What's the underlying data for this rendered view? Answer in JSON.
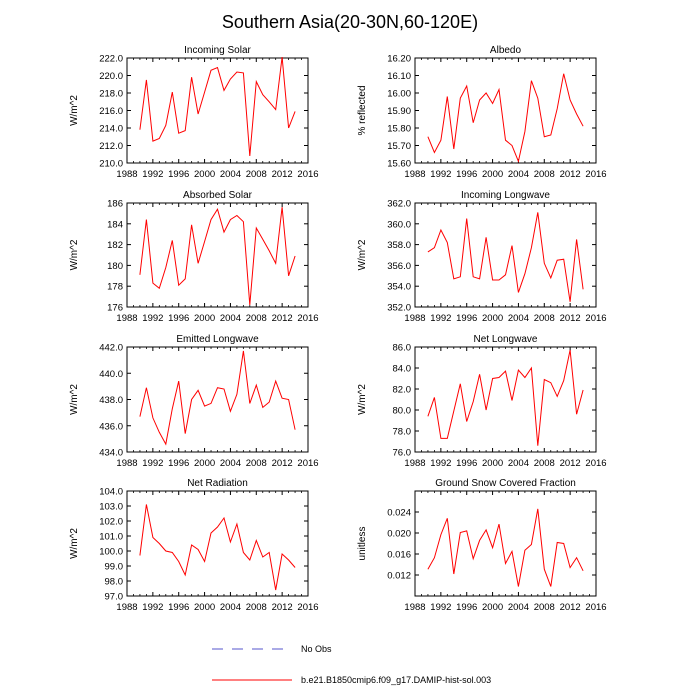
{
  "figure": {
    "title": "Southern Asia(20-30N,60-120E)",
    "legend": [
      {
        "label": "No Obs",
        "color": "#5555cc",
        "style": "dashed"
      },
      {
        "label": "b.e21.B1850cmip6.f09_g17.DAMIP-hist-sol.003",
        "color": "#ff0000",
        "style": "solid"
      }
    ]
  },
  "chart_data": [
    {
      "type": "line",
      "title": "Incoming Solar",
      "ylabel": "W/m^2",
      "xlim": [
        1988,
        2016
      ],
      "xticks": [
        1988,
        1992,
        1996,
        2000,
        2004,
        2008,
        2012,
        2016
      ],
      "ylim": [
        210,
        222
      ],
      "yticks": [
        "210.0",
        "212.0",
        "214.0",
        "216.0",
        "218.0",
        "220.0",
        "222.0"
      ],
      "series": [
        {
          "color": "#ff0000",
          "x": [
            1990,
            1991,
            1992,
            1993,
            1994,
            1995,
            1996,
            1997,
            1998,
            1999,
            2000,
            2001,
            2002,
            2003,
            2004,
            2005,
            2006,
            2007,
            2008,
            2009,
            2010,
            2011,
            2012,
            2013,
            2014
          ],
          "y": [
            213.8,
            219.5,
            212.5,
            212.8,
            214.3,
            218.1,
            213.4,
            213.7,
            219.8,
            215.6,
            218.1,
            220.6,
            220.9,
            218.3,
            219.6,
            220.4,
            220.3,
            210.8,
            219.3,
            217.8,
            217.0,
            216.1,
            222.1,
            214.0,
            215.9
          ]
        }
      ]
    },
    {
      "type": "line",
      "title": "Albedo",
      "ylabel": "% reflected",
      "xlim": [
        1988,
        2016
      ],
      "xticks": [
        1988,
        1992,
        1996,
        2000,
        2004,
        2008,
        2012,
        2016
      ],
      "ylim": [
        15.6,
        16.2
      ],
      "yticks": [
        "15.60",
        "15.70",
        "15.80",
        "15.90",
        "16.00",
        "16.10",
        "16.20"
      ],
      "series": [
        {
          "color": "#ff0000",
          "x": [
            1990,
            1991,
            1992,
            1993,
            1994,
            1995,
            1996,
            1997,
            1998,
            1999,
            2000,
            2001,
            2002,
            2003,
            2004,
            2005,
            2006,
            2007,
            2008,
            2009,
            2010,
            2011,
            2012,
            2013,
            2014
          ],
          "y": [
            15.75,
            15.66,
            15.73,
            15.98,
            15.68,
            15.97,
            16.04,
            15.83,
            15.96,
            16.0,
            15.94,
            16.02,
            15.73,
            15.7,
            15.61,
            15.78,
            16.07,
            15.97,
            15.75,
            15.76,
            15.91,
            16.11,
            15.96,
            15.88,
            15.81
          ]
        }
      ]
    },
    {
      "type": "line",
      "title": "Absorbed Solar",
      "ylabel": "W/m^2",
      "xlim": [
        1988,
        2016
      ],
      "xticks": [
        1988,
        1992,
        1996,
        2000,
        2004,
        2008,
        2012,
        2016
      ],
      "ylim": [
        176,
        186
      ],
      "yticks": [
        "176",
        "178",
        "180",
        "182",
        "184",
        "186"
      ],
      "series": [
        {
          "color": "#ff0000",
          "x": [
            1990,
            1991,
            1992,
            1993,
            1994,
            1995,
            1996,
            1997,
            1998,
            1999,
            2000,
            2001,
            2002,
            2003,
            2004,
            2005,
            2006,
            2007,
            2008,
            2009,
            2010,
            2011,
            2012,
            2013,
            2014
          ],
          "y": [
            179.1,
            184.4,
            178.3,
            177.8,
            179.8,
            182.4,
            178.1,
            178.7,
            183.9,
            180.2,
            182.3,
            184.4,
            185.4,
            183.2,
            184.4,
            184.8,
            184.2,
            176.2,
            183.6,
            182.5,
            181.4,
            180.2,
            185.6,
            179.0,
            180.9
          ]
        }
      ]
    },
    {
      "type": "line",
      "title": "Incoming Longwave",
      "ylabel": "W/m^2",
      "xlim": [
        1988,
        2016
      ],
      "xticks": [
        1988,
        1992,
        1996,
        2000,
        2004,
        2008,
        2012,
        2016
      ],
      "ylim": [
        352,
        362
      ],
      "yticks": [
        "352.0",
        "354.0",
        "356.0",
        "358.0",
        "360.0",
        "362.0"
      ],
      "series": [
        {
          "color": "#ff0000",
          "x": [
            1990,
            1991,
            1992,
            1993,
            1994,
            1995,
            1996,
            1997,
            1998,
            1999,
            2000,
            2001,
            2002,
            2003,
            2004,
            2005,
            2006,
            2007,
            2008,
            2009,
            2010,
            2011,
            2012,
            2013,
            2014
          ],
          "y": [
            357.3,
            357.7,
            359.4,
            358.2,
            354.7,
            354.9,
            360.5,
            354.9,
            354.7,
            358.7,
            354.6,
            354.6,
            355.1,
            357.9,
            353.4,
            355.2,
            357.7,
            361.1,
            356.2,
            354.8,
            356.5,
            356.6,
            352.5,
            358.5,
            353.7
          ]
        }
      ]
    },
    {
      "type": "line",
      "title": "Emitted Longwave",
      "ylabel": "W/m^2",
      "xlim": [
        1988,
        2016
      ],
      "xticks": [
        1988,
        1992,
        1996,
        2000,
        2004,
        2008,
        2012,
        2016
      ],
      "ylim": [
        434,
        442
      ],
      "yticks": [
        "434.0",
        "436.0",
        "438.0",
        "440.0",
        "442.0"
      ],
      "series": [
        {
          "color": "#ff0000",
          "x": [
            1990,
            1991,
            1992,
            1993,
            1994,
            1995,
            1996,
            1997,
            1998,
            1999,
            2000,
            2001,
            2002,
            2003,
            2004,
            2005,
            2006,
            2007,
            2008,
            2009,
            2010,
            2011,
            2012,
            2013,
            2014
          ],
          "y": [
            436.7,
            438.9,
            436.6,
            435.5,
            434.6,
            437.3,
            439.4,
            435.4,
            438.0,
            438.7,
            437.5,
            437.7,
            438.9,
            438.8,
            437.1,
            438.4,
            441.7,
            437.7,
            439.1,
            437.4,
            437.8,
            439.4,
            438.1,
            438.0,
            435.7
          ]
        }
      ]
    },
    {
      "type": "line",
      "title": "Net Longwave",
      "ylabel": "W/m^2",
      "xlim": [
        1988,
        2016
      ],
      "xticks": [
        1988,
        1992,
        1996,
        2000,
        2004,
        2008,
        2012,
        2016
      ],
      "ylim": [
        76,
        86
      ],
      "yticks": [
        "76.0",
        "78.0",
        "80.0",
        "82.0",
        "84.0",
        "86.0"
      ],
      "series": [
        {
          "color": "#ff0000",
          "x": [
            1990,
            1991,
            1992,
            1993,
            1994,
            1995,
            1996,
            1997,
            1998,
            1999,
            2000,
            2001,
            2002,
            2003,
            2004,
            2005,
            2006,
            2007,
            2008,
            2009,
            2010,
            2011,
            2012,
            2013,
            2014
          ],
          "y": [
            79.4,
            81.2,
            77.3,
            77.3,
            79.9,
            82.5,
            78.9,
            80.8,
            83.4,
            80.0,
            83.0,
            83.1,
            83.7,
            80.9,
            83.8,
            83.1,
            84.0,
            76.6,
            82.9,
            82.6,
            81.3,
            82.8,
            85.7,
            79.6,
            81.9
          ]
        }
      ]
    },
    {
      "type": "line",
      "title": "Net Radiation",
      "ylabel": "W/m^2",
      "xlim": [
        1988,
        2016
      ],
      "xticks": [
        1988,
        1992,
        1996,
        2000,
        2004,
        2008,
        2012,
        2016
      ],
      "ylim": [
        97,
        104
      ],
      "yticks": [
        "97.0",
        "98.0",
        "99.0",
        "100.0",
        "101.0",
        "102.0",
        "103.0",
        "104.0"
      ],
      "series": [
        {
          "color": "#ff0000",
          "x": [
            1990,
            1991,
            1992,
            1993,
            1994,
            1995,
            1996,
            1997,
            1998,
            1999,
            2000,
            2001,
            2002,
            2003,
            2004,
            2005,
            2006,
            2007,
            2008,
            2009,
            2010,
            2011,
            2012,
            2013,
            2014
          ],
          "y": [
            99.7,
            103.1,
            100.9,
            100.5,
            100.0,
            99.9,
            99.3,
            98.4,
            100.4,
            100.1,
            99.3,
            101.2,
            101.6,
            102.2,
            100.6,
            101.8,
            99.9,
            99.4,
            100.7,
            99.6,
            99.9,
            97.4,
            99.8,
            99.4,
            98.9
          ]
        }
      ]
    },
    {
      "type": "line",
      "title": "Ground Snow Covered Fraction",
      "ylabel": "unitless",
      "xlim": [
        1988,
        2016
      ],
      "xticks": [
        1988,
        1992,
        1996,
        2000,
        2004,
        2008,
        2012,
        2016
      ],
      "ylim": [
        0.008,
        0.028
      ],
      "yticks": [
        "0.012",
        "0.016",
        "0.020",
        "0.024"
      ],
      "ytickvals": [
        0.012,
        0.016,
        0.02,
        0.024
      ],
      "series": [
        {
          "color": "#ff0000",
          "x": [
            1990,
            1991,
            1992,
            1993,
            1994,
            1995,
            1996,
            1997,
            1998,
            1999,
            2000,
            2001,
            2002,
            2003,
            2004,
            2005,
            2006,
            2007,
            2008,
            2009,
            2010,
            2011,
            2012,
            2013,
            2014
          ],
          "y": [
            0.0131,
            0.0153,
            0.0197,
            0.0228,
            0.0122,
            0.0201,
            0.0204,
            0.0151,
            0.0186,
            0.0206,
            0.0172,
            0.0217,
            0.0142,
            0.0165,
            0.0098,
            0.0167,
            0.0178,
            0.0246,
            0.0131,
            0.0098,
            0.0182,
            0.018,
            0.0134,
            0.0153,
            0.0128
          ]
        }
      ]
    }
  ]
}
